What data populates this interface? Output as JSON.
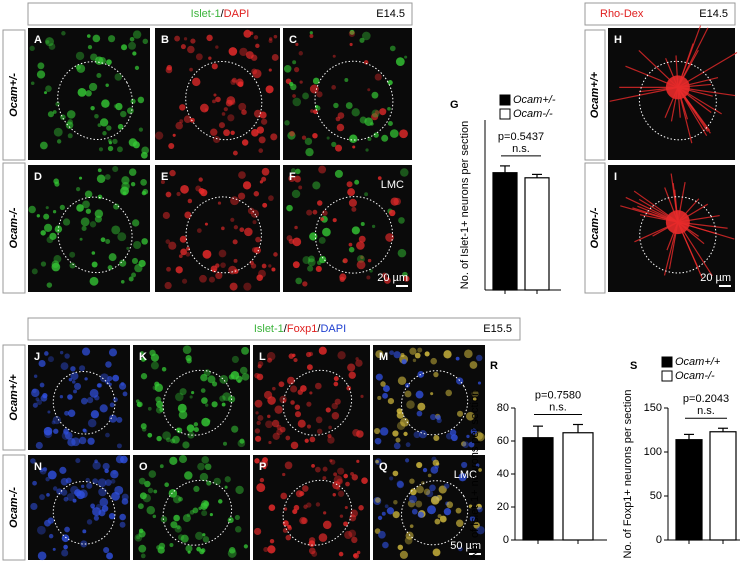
{
  "headers": {
    "top_left": {
      "marker1": "Islet-1",
      "sep": "/",
      "marker2": "DAPI",
      "stage": "E14.5"
    },
    "top_right": {
      "marker1": "Rho-Dex",
      "stage": "E14.5"
    },
    "bottom": {
      "marker1": "Islet-1",
      "sep1": "/",
      "marker2": "Foxp1",
      "sep2": "/",
      "marker3": "DAPI",
      "stage": "E15.5"
    }
  },
  "row_labels": [
    "Ocam+/-",
    "Ocam-/-",
    "Ocam+/+",
    "Ocam-/-",
    "Ocam+/+",
    "Ocam-/-"
  ],
  "panels": [
    {
      "letter": "A"
    },
    {
      "letter": "B"
    },
    {
      "letter": "C"
    },
    {
      "letter": "D"
    },
    {
      "letter": "E"
    },
    {
      "letter": "F",
      "label": "LMC",
      "scale": "20 µm"
    },
    {
      "letter": "H"
    },
    {
      "letter": "I",
      "scale": "20 µm"
    },
    {
      "letter": "J"
    },
    {
      "letter": "K"
    },
    {
      "letter": "L"
    },
    {
      "letter": "M"
    },
    {
      "letter": "N"
    },
    {
      "letter": "O"
    },
    {
      "letter": "P"
    },
    {
      "letter": "Q",
      "label": "LMC",
      "scale": "50 µm"
    }
  ],
  "chart_data": [
    {
      "type": "bar",
      "title": "G",
      "ylabel": "No. of Islet-1+ neurons per section",
      "ylim": [
        0,
        100
      ],
      "p_value": "p=0.5437",
      "significance": "n.s.",
      "series": [
        {
          "name": "Ocam+/-",
          "color": "#000000",
          "values": [
            69
          ],
          "errors": [
            4
          ]
        },
        {
          "name": "Ocam-/-",
          "color": "#ffffff",
          "values": [
            66
          ],
          "errors": [
            2
          ]
        }
      ]
    },
    {
      "type": "bar",
      "title": "R",
      "ylabel": "No. of Islet-1+ neurons per section",
      "ylim": [
        0,
        80
      ],
      "yticks": [
        0,
        20,
        40,
        60,
        80
      ],
      "p_value": "p=0.7580",
      "significance": "n.s.",
      "series": [
        {
          "name": null,
          "color": "#000000",
          "values": [
            62
          ],
          "errors": [
            7
          ]
        },
        {
          "name": null,
          "color": "#ffffff",
          "values": [
            65
          ],
          "errors": [
            5
          ]
        }
      ]
    },
    {
      "type": "bar",
      "title": "S",
      "ylabel": "No. of Foxp1+ neurons per section",
      "ylim": [
        0,
        150
      ],
      "yticks": [
        0,
        50,
        100,
        150
      ],
      "p_value": "p=0.2043",
      "significance": "n.s.",
      "series": [
        {
          "name": "Ocam+/+",
          "color": "#000000",
          "values": [
            114
          ],
          "errors": [
            6
          ]
        },
        {
          "name": "Ocam-/-",
          "color": "#ffffff",
          "values": [
            123
          ],
          "errors": [
            4
          ]
        }
      ]
    }
  ]
}
